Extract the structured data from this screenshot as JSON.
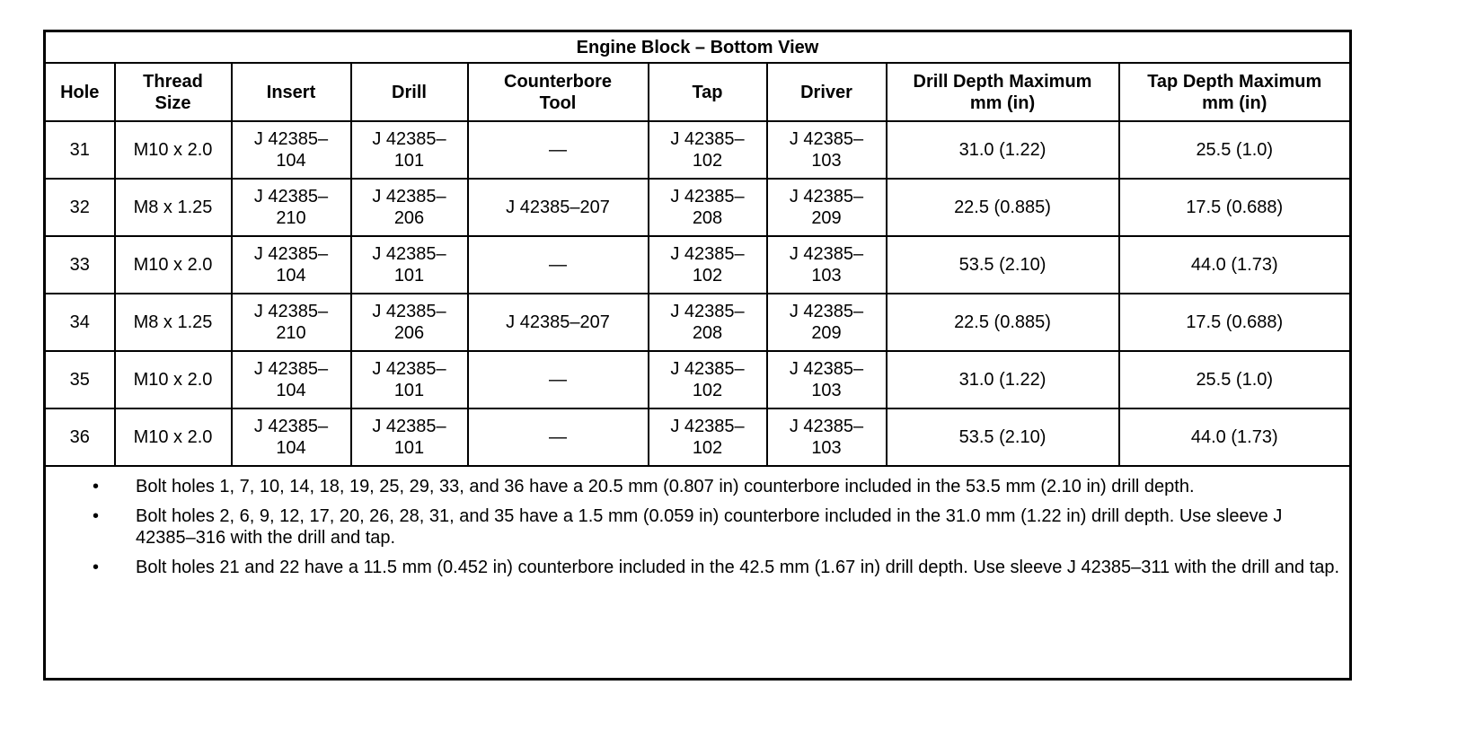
{
  "title": "Engine Block – Bottom View",
  "headers": [
    "Hole",
    "Thread\nSize",
    "Insert",
    "Drill",
    "Counterbore\nTool",
    "Tap",
    "Driver",
    "Drill Depth Maximum\nmm (in)",
    "Tap Depth Maximum\nmm (in)"
  ],
  "rows": [
    [
      "31",
      "M10 x 2.0",
      "J 42385–\n104",
      "J 42385–\n101",
      "—",
      "J 42385–\n102",
      "J 42385–\n103",
      "31.0 (1.22)",
      "25.5 (1.0)"
    ],
    [
      "32",
      "M8 x 1.25",
      "J 42385–\n210",
      "J 42385–\n206",
      "J 42385–207",
      "J 42385–\n208",
      "J 42385–\n209",
      "22.5 (0.885)",
      "17.5 (0.688)"
    ],
    [
      "33",
      "M10 x 2.0",
      "J 42385–\n104",
      "J 42385–\n101",
      "—",
      "J 42385–\n102",
      "J 42385–\n103",
      "53.5 (2.10)",
      "44.0 (1.73)"
    ],
    [
      "34",
      "M8 x 1.25",
      "J 42385–\n210",
      "J 42385–\n206",
      "J 42385–207",
      "J 42385–\n208",
      "J 42385–\n209",
      "22.5 (0.885)",
      "17.5 (0.688)"
    ],
    [
      "35",
      "M10 x 2.0",
      "J 42385–\n104",
      "J 42385–\n101",
      "—",
      "J 42385–\n102",
      "J 42385–\n103",
      "31.0 (1.22)",
      "25.5 (1.0)"
    ],
    [
      "36",
      "M10 x 2.0",
      "J 42385–\n104",
      "J 42385–\n101",
      "—",
      "J 42385–\n102",
      "J 42385–\n103",
      "53.5 (2.10)",
      "44.0 (1.73)"
    ]
  ],
  "notes": [
    "Bolt holes 1, 7, 10, 14, 18, 19, 25, 29, 33, and 36 have a 20.5 mm (0.807 in) counterbore included in the 53.5 mm (2.10 in) drill depth.",
    "Bolt holes 2, 6, 9, 12, 17, 20, 26, 28, 31, and 35 have a 1.5 mm (0.059 in) counterbore included in the 31.0 mm (1.22 in) drill depth. Use sleeve J 42385–316 with the drill and tap.",
    "Bolt holes 21 and 22 have a 11.5 mm (0.452 in) counterbore included in the 42.5 mm (1.67 in) drill depth. Use sleeve J 42385–311 with the drill and tap."
  ],
  "bullet": "•"
}
